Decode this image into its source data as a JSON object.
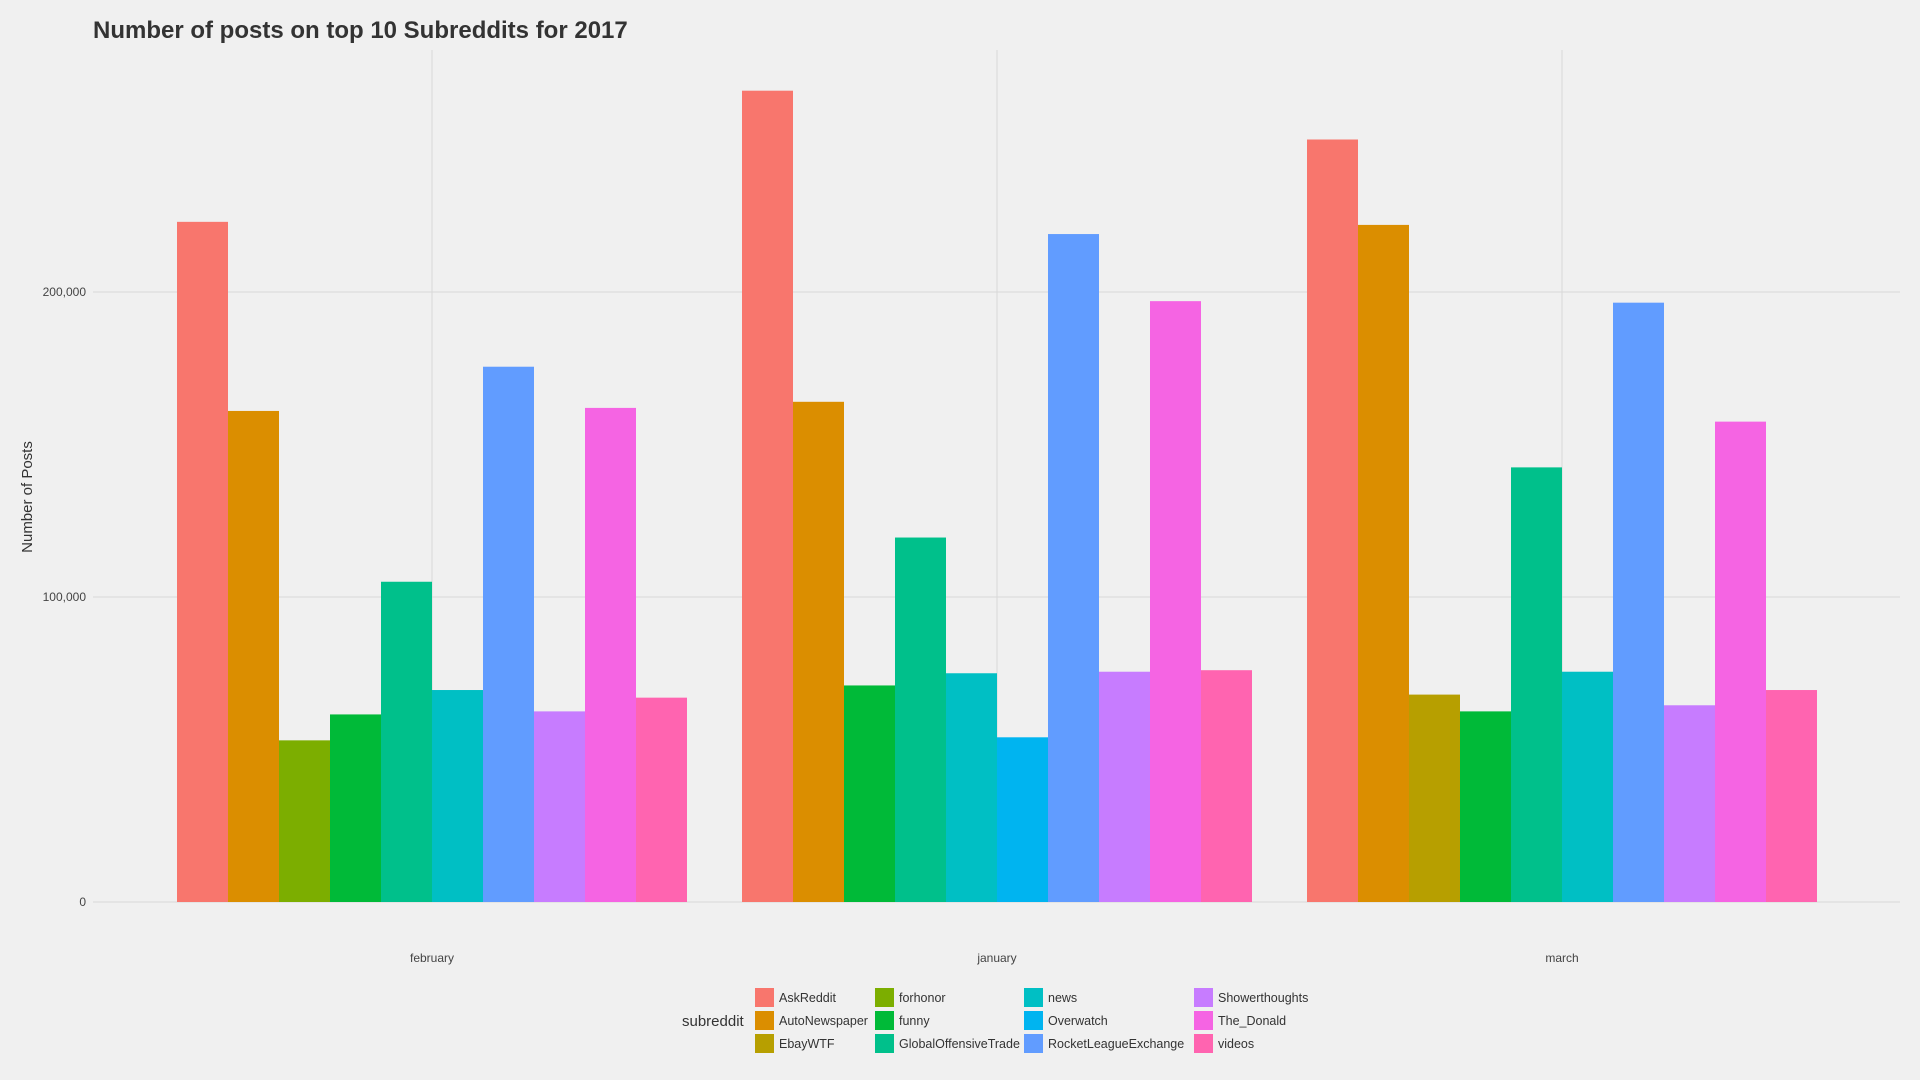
{
  "chart_data": {
    "type": "bar",
    "title": "Number of posts on top 10 Subreddits for 2017",
    "ylabel": "Number of Posts",
    "xlabel": "",
    "ylim": [
      0,
      280000
    ],
    "yticks": [
      0,
      100000,
      200000
    ],
    "ytick_labels": [
      "0",
      "100,000",
      "200,000"
    ],
    "categories": [
      "february",
      "january",
      "march"
    ],
    "legend_title": "subreddit",
    "legend_position": "bottom",
    "grid": true,
    "series": [
      {
        "name": "AskReddit",
        "color": "#F8766D",
        "values": [
          223000,
          266000,
          250000
        ]
      },
      {
        "name": "AutoNewspaper",
        "color": "#DB8E00",
        "values": [
          161000,
          164000,
          222000
        ]
      },
      {
        "name": "EbayWTF",
        "color": "#B79F00",
        "values": [
          null,
          null,
          68000
        ]
      },
      {
        "name": "forhonor",
        "color": "#7CAE00",
        "values": [
          53000,
          null,
          null
        ]
      },
      {
        "name": "funny",
        "color": "#00BA38",
        "values": [
          61500,
          71000,
          62500
        ]
      },
      {
        "name": "GlobalOffensiveTrade",
        "color": "#00C08B",
        "values": [
          105000,
          119500,
          142500
        ]
      },
      {
        "name": "news",
        "color": "#00BFC4",
        "values": [
          69500,
          75000,
          75500
        ]
      },
      {
        "name": "Overwatch",
        "color": "#00B4F0",
        "values": [
          null,
          54000,
          null
        ]
      },
      {
        "name": "RocketLeagueExchange",
        "color": "#619CFF",
        "values": [
          175500,
          219000,
          196500
        ]
      },
      {
        "name": "Showerthoughts",
        "color": "#C77CFF",
        "values": [
          62500,
          75500,
          64500
        ]
      },
      {
        "name": "The_Donald",
        "color": "#F564E3",
        "values": [
          162000,
          197000,
          157500
        ]
      },
      {
        "name": "videos",
        "color": "#FF64B0",
        "values": [
          67000,
          76000,
          69500
        ]
      }
    ]
  }
}
